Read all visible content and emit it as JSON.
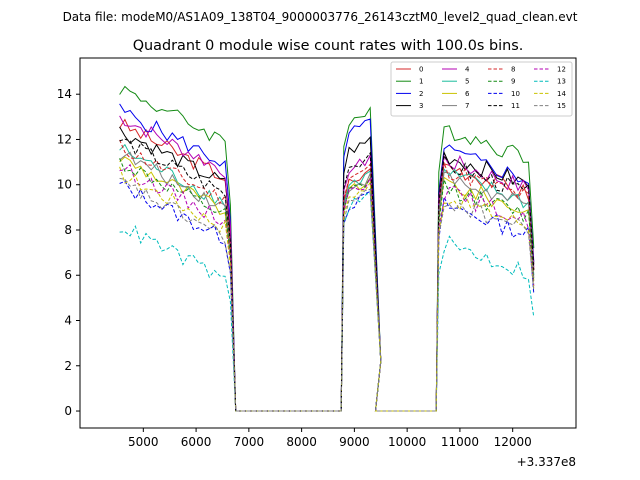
{
  "figure": {
    "suptitle": "Data file: modeM0/AS1A09_138T04_9000003776_26143cztM0_level2_quad_clean.evt"
  },
  "chart_data": {
    "type": "line",
    "title": "Quadrant 0 module wise count rates with 100.0s bins.",
    "xlabel": "",
    "ylabel": "",
    "x_offset_label": "+3.337e8",
    "xlim": [
      3800,
      13200
    ],
    "ylim": [
      -0.75,
      15.6
    ],
    "xticks": [
      5000,
      6000,
      7000,
      8000,
      9000,
      10000,
      11000,
      12000
    ],
    "xtick_labels": [
      "5000",
      "6000",
      "7000",
      "8000",
      "9000",
      "10000",
      "11000",
      "12000"
    ],
    "yticks": [
      0,
      2,
      4,
      6,
      8,
      10,
      12,
      14
    ],
    "ytick_labels": [
      "0",
      "2",
      "4",
      "6",
      "8",
      "10",
      "12",
      "14"
    ],
    "grid": false,
    "legend_position": "top-right",
    "legend_columns": 4,
    "bin_seconds": 100,
    "segments": [
      {
        "start": 4550,
        "count": 22,
        "step": 100
      },
      {
        "ramp": [
          6750,
          8750
        ]
      },
      {
        "start": 8800,
        "count": 6,
        "step": 100
      },
      {
        "ramp": [
          9450,
          10550
        ]
      },
      {
        "start": 10600,
        "count": 18,
        "step": 100
      },
      {
        "end": 12400
      }
    ],
    "series": [
      {
        "name": "0",
        "color": "#d62728",
        "dashed": false,
        "level1": 11.4,
        "level2": 10.0,
        "level3": 10.4
      },
      {
        "name": "1",
        "color": "#138a13",
        "dashed": false,
        "level1": 13.0,
        "level2": 12.7,
        "level3": 12.0
      },
      {
        "name": "2",
        "color": "#0000ee",
        "dashed": false,
        "level1": 12.0,
        "level2": 12.2,
        "level3": 11.0
      },
      {
        "name": "3",
        "color": "#000000",
        "dashed": false,
        "level1": 11.1,
        "level2": 11.4,
        "level3": 10.8
      },
      {
        "name": "4",
        "color": "#b300b3",
        "dashed": false,
        "level1": 11.7,
        "level2": 10.6,
        "level3": 10.6
      },
      {
        "name": "5",
        "color": "#1abc9c",
        "dashed": false,
        "level1": 10.3,
        "level2": 9.9,
        "level3": 10.0
      },
      {
        "name": "6",
        "color": "#c9c200",
        "dashed": false,
        "level1": 9.9,
        "level2": 9.6,
        "level3": 9.6
      },
      {
        "name": "7",
        "color": "#808080",
        "dashed": false,
        "level1": 10.1,
        "level2": 9.8,
        "level3": 9.8
      },
      {
        "name": "8",
        "color": "#d62728",
        "dashed": true,
        "level1": 10.4,
        "level2": 10.2,
        "level3": 10.2
      },
      {
        "name": "9",
        "color": "#138a13",
        "dashed": true,
        "level1": 9.7,
        "level2": 9.6,
        "level3": 9.4
      },
      {
        "name": "10",
        "color": "#0000ee",
        "dashed": true,
        "level1": 8.7,
        "level2": 9.0,
        "level3": 8.6
      },
      {
        "name": "11",
        "color": "#000000",
        "dashed": true,
        "level1": 10.7,
        "level2": 10.7,
        "level3": 10.4
      },
      {
        "name": "12",
        "color": "#b300b3",
        "dashed": true,
        "level1": 9.5,
        "level2": 9.6,
        "level3": 9.2
      },
      {
        "name": "13",
        "color": "#00bcbc",
        "dashed": true,
        "level1": 6.9,
        "level2": 9.0,
        "level3": 6.9
      },
      {
        "name": "14",
        "color": "#c9c200",
        "dashed": true,
        "level1": 9.2,
        "level2": 9.4,
        "level3": 9.0
      },
      {
        "name": "15",
        "color": "#808080",
        "dashed": true,
        "level1": 8.8,
        "level2": 9.1,
        "level3": 8.8
      }
    ]
  }
}
